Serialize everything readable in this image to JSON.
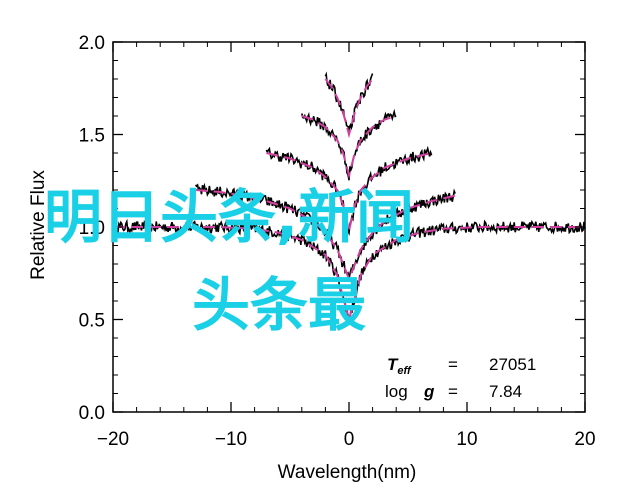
{
  "chart_data": {
    "type": "line",
    "xlabel": "Wavelength(nm)",
    "ylabel": "Relative Flux",
    "xlim": [
      -20,
      20
    ],
    "ylim": [
      0.0,
      2.0
    ],
    "xticks": [
      -20,
      -10,
      0,
      10,
      20
    ],
    "xtick_labels": [
      "−20",
      "−10",
      "0",
      "10",
      "20"
    ],
    "yticks": [
      0.0,
      0.5,
      1.0,
      1.5,
      2.0
    ],
    "ytick_labels": [
      "0.0",
      "0.5",
      "1.0",
      "1.5",
      "2.0"
    ],
    "grid": false,
    "annotations": {
      "teff_label": "T",
      "teff_sub": "eff",
      "teff_eq": "=",
      "teff_value": "27051",
      "logg_label": "log",
      "logg_g": "g",
      "logg_eq": "=",
      "logg_value": "7.84"
    },
    "colors": {
      "observed": "#000000",
      "model": "#d040a0"
    },
    "series": [
      {
        "offset": 0.0,
        "x": [
          -20,
          -17,
          -14,
          -11,
          -8,
          -6,
          -4,
          -2,
          -1,
          0,
          1,
          2,
          4,
          6,
          8,
          11,
          14,
          17,
          20
        ],
        "y": [
          1.0,
          1.0,
          1.0,
          1.0,
          0.99,
          0.97,
          0.93,
          0.85,
          0.74,
          0.5,
          0.74,
          0.85,
          0.93,
          0.97,
          0.99,
          1.0,
          1.0,
          1.0,
          1.0
        ]
      },
      {
        "offset": 0.2,
        "x": [
          -13,
          -11,
          -9,
          -7,
          -5,
          -3,
          -2,
          -1,
          0,
          1,
          2,
          3,
          5,
          7,
          9
        ],
        "y": [
          1.2,
          1.19,
          1.17,
          1.14,
          1.1,
          1.03,
          0.97,
          0.88,
          0.72,
          0.88,
          0.97,
          1.03,
          1.1,
          1.14,
          1.17
        ]
      },
      {
        "offset": 0.4,
        "x": [
          -7,
          -5,
          -3,
          -2,
          -1,
          -0.5,
          0,
          0.5,
          1,
          2,
          3,
          5,
          7
        ],
        "y": [
          1.4,
          1.37,
          1.32,
          1.27,
          1.2,
          1.12,
          0.98,
          1.12,
          1.2,
          1.27,
          1.32,
          1.37,
          1.4
        ]
      },
      {
        "offset": 0.6,
        "x": [
          -4,
          -3,
          -2,
          -1,
          -0.5,
          0,
          0.5,
          1,
          2,
          3,
          4
        ],
        "y": [
          1.6,
          1.58,
          1.54,
          1.47,
          1.4,
          1.28,
          1.4,
          1.47,
          1.54,
          1.58,
          1.6
        ]
      },
      {
        "offset": 0.8,
        "x": [
          -2,
          -1.5,
          -1,
          -0.5,
          0,
          0.5,
          1,
          1.5,
          2
        ],
        "y": [
          1.8,
          1.76,
          1.7,
          1.62,
          1.5,
          1.62,
          1.7,
          1.76,
          1.8
        ]
      }
    ]
  },
  "overlay": {
    "line1": "明日头条,新闻",
    "line2": "头条最"
  }
}
